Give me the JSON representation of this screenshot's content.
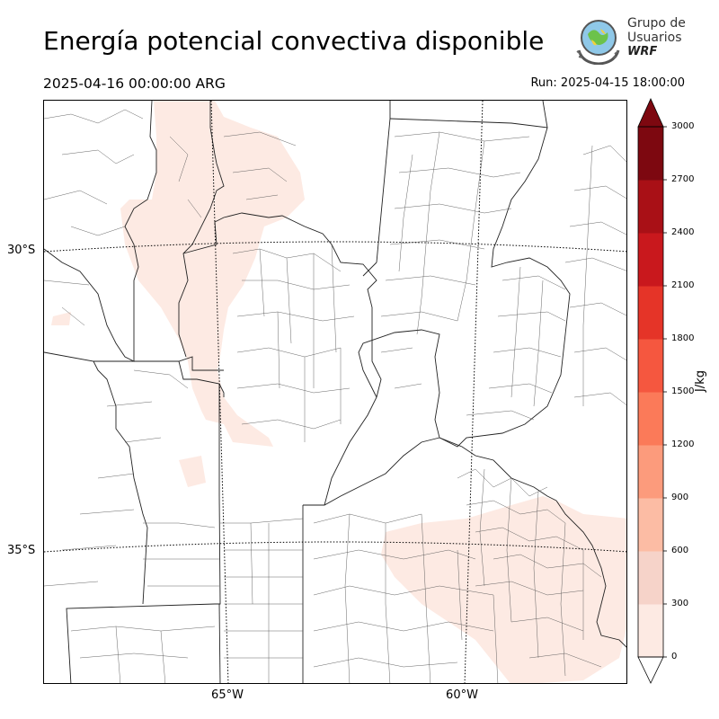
{
  "header": {
    "title": "Energía potencial convectiva disponible",
    "valid_time": "2025-04-16 00:00:00 ARG",
    "run_time": "Run: 2025-04-15 18:00:00"
  },
  "logo": {
    "line1": "Grupo de",
    "line2": "Usuarios",
    "line3": "WRF"
  },
  "map": {
    "lat_labels": [
      "30°S",
      "35°S"
    ],
    "lon_labels": [
      "65°W",
      "60°W"
    ]
  },
  "colorbar": {
    "label": "J/kg",
    "ticks": [
      "3000",
      "2700",
      "2400",
      "2100",
      "1800",
      "1500",
      "1200",
      "900",
      "600",
      "300",
      "0"
    ],
    "levels": [
      0,
      300,
      600,
      900,
      1200,
      1500,
      1800,
      2100,
      2400,
      2700,
      3000
    ],
    "colors": [
      "#fdeae3",
      "#f6d3c9",
      "#fcbca4",
      "#fc9b7c",
      "#fb7a59",
      "#f5573f",
      "#e53428",
      "#c9181d",
      "#a91016",
      "#7d0810"
    ],
    "extend": "both"
  }
}
